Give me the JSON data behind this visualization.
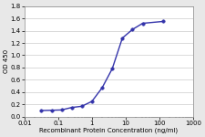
{
  "x": [
    0.031,
    0.063,
    0.125,
    0.25,
    0.5,
    1.0,
    2.0,
    4.0,
    8.0,
    16.0,
    32.0,
    128.0
  ],
  "y": [
    0.1,
    0.105,
    0.11,
    0.15,
    0.17,
    0.25,
    0.47,
    0.78,
    1.28,
    1.42,
    1.52,
    1.55
  ],
  "line_color": "#3333aa",
  "marker_color": "#3333aa",
  "marker": "o",
  "marker_size": 2.5,
  "line_width": 1.0,
  "xlabel": "Recombinant Protein Concentration (ng/ml)",
  "ylabel": "OD 450",
  "ylim": [
    0,
    1.8
  ],
  "yticks": [
    0,
    0.2,
    0.4,
    0.6,
    0.8,
    1.0,
    1.2,
    1.4,
    1.6,
    1.8
  ],
  "xticks": [
    0.01,
    0.1,
    1,
    10,
    100,
    1000
  ],
  "xticklabels": [
    "0.01",
    "0.1",
    "1",
    "10",
    "100",
    "1000"
  ],
  "xlim": [
    0.01,
    1000
  ],
  "fig_bg_color": "#e8e8e8",
  "plot_bg_color": "#ffffff",
  "xlabel_fontsize": 5.0,
  "ylabel_fontsize": 5.0,
  "tick_fontsize": 5.0,
  "grid_color": "#cccccc",
  "grid_linewidth": 0.5
}
